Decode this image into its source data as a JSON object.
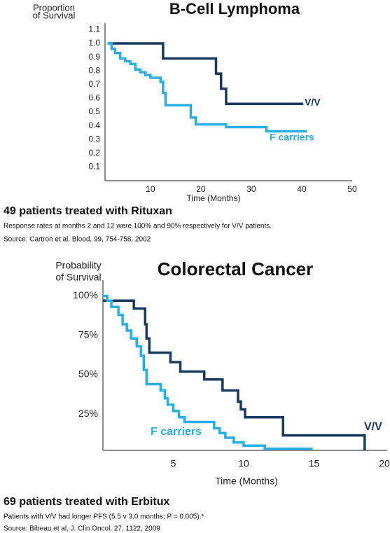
{
  "chart_data": [
    {
      "type": "line",
      "step": "post",
      "title": "B-Cell Lymphoma",
      "y_label": [
        "Proportion",
        "of Survival"
      ],
      "x_label": "Time (Months)",
      "xlim": [
        1,
        50
      ],
      "xticks": [
        10,
        20,
        30,
        40,
        50
      ],
      "ylim": [
        0,
        1.15
      ],
      "yticks": [
        0.1,
        0.2,
        0.3,
        0.4,
        0.5,
        0.6,
        0.7,
        0.8,
        0.9,
        {
          "value": 1,
          "label": "1.0"
        },
        1.1
      ],
      "grid": false,
      "series": [
        {
          "name": "V/V",
          "color": "#173a5e",
          "x": [
            1.5,
            12.5,
            23,
            24,
            25,
            40.3
          ],
          "values": [
            1,
            0.89,
            0.78,
            0.67,
            0.56,
            0.56
          ]
        },
        {
          "name": "F carriers",
          "color": "#29aee8",
          "x": [
            1.5,
            2.3,
            3,
            4,
            5,
            6,
            7,
            8,
            9,
            10,
            12,
            12.5,
            13,
            18,
            19,
            25,
            33,
            41
          ],
          "values": [
            1,
            0.96,
            0.93,
            0.89,
            0.87,
            0.85,
            0.81,
            0.79,
            0.77,
            0.75,
            0.72,
            0.64,
            0.55,
            0.46,
            0.41,
            0.39,
            0.36,
            0.36
          ]
        }
      ],
      "caption": {
        "heading": "49 patients treated with Rituxan",
        "text": "Response rates at months 2 and 12 were 100% and 90% respectively for V/V patients.",
        "source": "Source:  Cartron et al, Blood, 99, 754-758, 2002"
      }
    },
    {
      "type": "line",
      "step": "post",
      "title": "Colorectal Cancer",
      "y_label": [
        "Probability",
        "of Survival"
      ],
      "x_label": "Time (Months)",
      "xlim": [
        0,
        20.2
      ],
      "xticks": [
        5,
        10,
        15,
        20
      ],
      "ylim": [
        2,
        110
      ],
      "yticks": [
        {
          "value": 25,
          "label": "25%"
        },
        {
          "value": 50,
          "label": "50%"
        },
        {
          "value": 75,
          "label": "75%"
        },
        {
          "value": 100,
          "label": "100%"
        }
      ],
      "grid": false,
      "series": [
        {
          "name": "V/V",
          "color": "#173a5e",
          "x": [
            0,
            2.2,
            3.0,
            3.1,
            3.3,
            4.8,
            5.5,
            7.2,
            8.5,
            9.6,
            9.8,
            10.1,
            12.8,
            18.6
          ],
          "values": [
            97,
            92,
            82,
            73,
            64,
            58,
            52,
            47,
            40,
            33,
            28,
            23,
            11.5,
            2
          ]
        },
        {
          "name": "F carriers",
          "color": "#29aee8",
          "x": [
            0,
            0.3,
            0.6,
            1.1,
            1.4,
            1.7,
            2.0,
            2.4,
            2.7,
            2.9,
            3.1,
            4.1,
            4.4,
            4.6,
            5.0,
            5.4,
            5.8,
            7.9,
            8.3,
            8.7,
            9.3,
            10.0,
            11.5,
            14.9
          ],
          "values": [
            100,
            97,
            93,
            88,
            82,
            78,
            73,
            68,
            62,
            53,
            44,
            40,
            35,
            31,
            27,
            23,
            20,
            16,
            13,
            10,
            7,
            5,
            3,
            3
          ]
        }
      ],
      "caption": {
        "heading": "69 patients treated with Erbitux",
        "text": "Patients with V/V had longer PFS (5.5 v 3.0 months; P  = 0.005).*",
        "source": "Source:  Bibeau et al, J. Clin Oncol, 27, 1122, 2009"
      }
    }
  ]
}
